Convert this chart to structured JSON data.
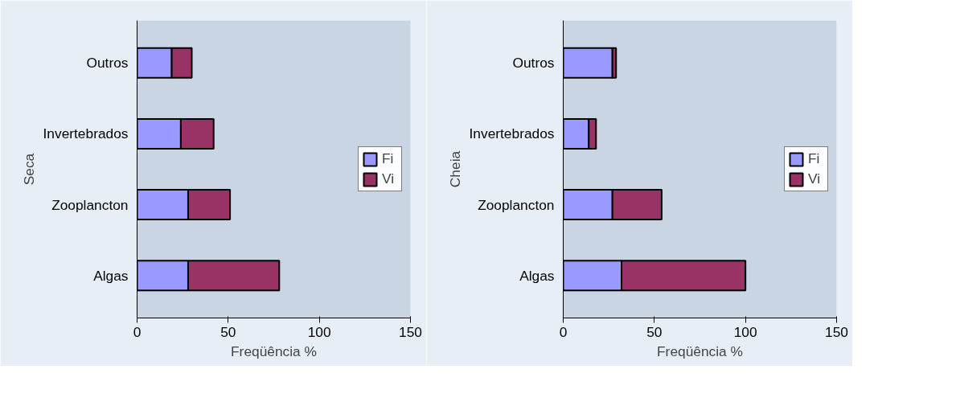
{
  "chart_data": [
    {
      "type": "bar",
      "orientation": "horizontal",
      "stacked": true,
      "ylabel": "Seca",
      "xlabel": "Freqüência %",
      "categories": [
        "Outros",
        "Invertebrados",
        "Zooplancton",
        "Algas"
      ],
      "series": [
        {
          "name": "Fi",
          "color": "#9999ff",
          "values": [
            19,
            24,
            28,
            28
          ]
        },
        {
          "name": "Vi",
          "color": "#993366",
          "values": [
            11,
            18,
            23,
            50
          ]
        }
      ],
      "xlim": [
        0,
        150
      ],
      "xticks": [
        0,
        50,
        100,
        150
      ],
      "grid": false,
      "legend": "right"
    },
    {
      "type": "bar",
      "orientation": "horizontal",
      "stacked": true,
      "ylabel": "Cheia",
      "xlabel": "Freqüência %",
      "categories": [
        "Outros",
        "Invertebrados",
        "Zooplancton",
        "Algas"
      ],
      "series": [
        {
          "name": "Fi",
          "color": "#9999ff",
          "values": [
            27,
            14,
            27,
            32
          ]
        },
        {
          "name": "Vi",
          "color": "#993366",
          "values": [
            2,
            4,
            27,
            68
          ]
        }
      ],
      "xlim": [
        0,
        150
      ],
      "xticks": [
        0,
        50,
        100,
        150
      ],
      "grid": false,
      "legend": "right"
    }
  ]
}
